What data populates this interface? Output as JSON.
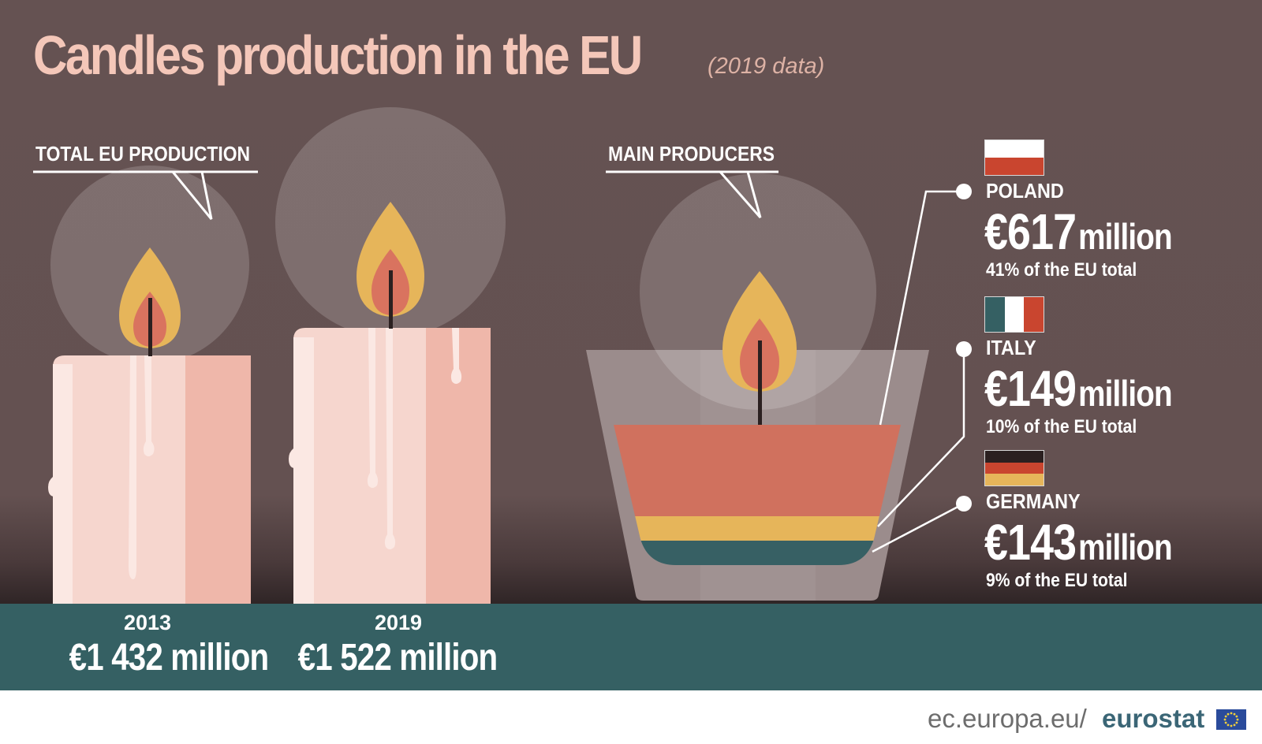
{
  "title": "Candles production in the EU",
  "subtitle": "(2019 data)",
  "chart_data": {
    "type": "bar",
    "sections": {
      "total": "TOTAL EU PRODUCTION",
      "producers": "MAIN PRODUCERS"
    },
    "total_production": [
      {
        "year": "2013",
        "value": 1432,
        "label": "€1 432 million"
      },
      {
        "year": "2019",
        "value": 1522,
        "label": "€1 522 million"
      }
    ],
    "producers": [
      {
        "country": "POLAND",
        "value": 617,
        "value_text": "€617",
        "unit": "million",
        "share": 41,
        "share_text": "41% of the EU total",
        "color": "#d0715e"
      },
      {
        "country": "ITALY",
        "value": 149,
        "value_text": "€149",
        "unit": "million",
        "share": 10,
        "share_text": "10% of the EU total",
        "color": "#e6b55a"
      },
      {
        "country": "GERMANY",
        "value": 143,
        "value_text": "€143",
        "unit": "million",
        "share": 9,
        "share_text": "9% of the EU total",
        "color": "#376064"
      }
    ]
  },
  "footer": {
    "domain": "ec.europa.eu/",
    "brand": "eurostat"
  },
  "colors": {
    "background": "#655252",
    "shelf": "#356063",
    "title": "#f4c7b9",
    "candle": "#f6d6ce",
    "flame_outer": "#e6b55a",
    "flame_inner": "#d9735f"
  }
}
